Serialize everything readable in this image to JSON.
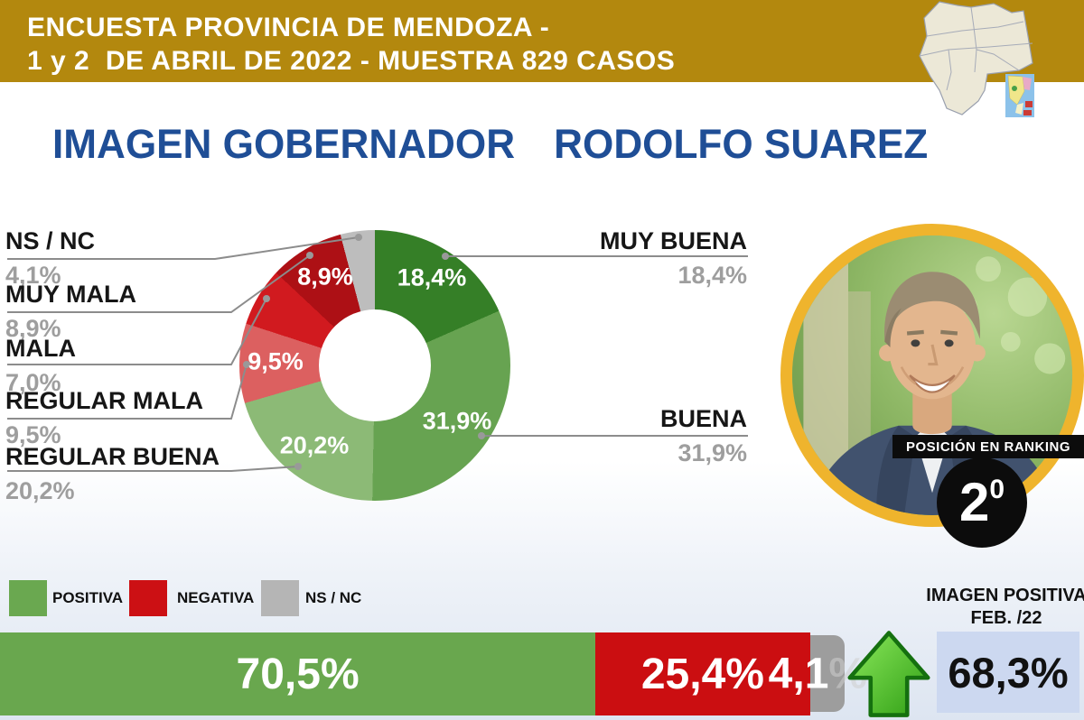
{
  "banner": {
    "line1": "ENCUESTA PROVINCIA DE MENDOZA -",
    "line2": "1 y 2  DE ABRIL DE 2022 - MUESTRA 829 CASOS",
    "bg_color": "#b3880e"
  },
  "title": {
    "left": "IMAGEN GOBERNADOR",
    "right": "RODOLFO SUAREZ",
    "color": "#1f4e96"
  },
  "chart_data": [
    {
      "type": "pie",
      "subtype": "donut",
      "title": "IMAGEN GOBERNADOR RODOLFO SUAREZ",
      "categories": [
        "MUY BUENA",
        "BUENA",
        "REGULAR BUENA",
        "REGULAR MALA",
        "MALA",
        "MUY MALA",
        "NS / NC"
      ],
      "values": [
        18.4,
        31.9,
        20.2,
        9.5,
        7.0,
        8.9,
        4.1
      ],
      "value_labels": [
        "18,4%",
        "31,9%",
        "20,2%",
        "9,5%",
        "7,0%",
        "8,9%",
        "4,1%"
      ],
      "colors": [
        "#357f27",
        "#67a351",
        "#8cba76",
        "#dc6060",
        "#d11a1f",
        "#ad1015",
        "#bdbdbd"
      ],
      "start_angle_deg": 0,
      "direction": "clockwise",
      "donut_hole_ratio": 0.41,
      "legend_position": "left-right callouts"
    },
    {
      "type": "bar",
      "subtype": "stacked-horizontal-100",
      "categories": [
        "POSITIVA",
        "NEGATIVA",
        "NS / NC"
      ],
      "values": [
        70.5,
        25.4,
        4.1
      ],
      "value_labels": [
        "70,5%",
        "25,4%",
        "4,1%"
      ],
      "colors": [
        "#69a74e",
        "#cb0e11",
        "#9d9d9d"
      ],
      "comparison": {
        "label": "IMAGEN POSITIVA FEB. /22",
        "value": 68.3,
        "value_label": "68,3%",
        "trend": "up"
      }
    }
  ],
  "donut_labels": {
    "left": [
      {
        "name": "NS / NC",
        "pct": "4,1%"
      },
      {
        "name": "MUY MALA",
        "pct": "8,9%"
      },
      {
        "name": "MALA",
        "pct": "7,0%"
      },
      {
        "name": "REGULAR MALA",
        "pct": "9,5%"
      },
      {
        "name": "REGULAR BUENA",
        "pct": "20,2%"
      }
    ],
    "right": [
      {
        "name": "MUY BUENA",
        "pct": "18,4%"
      },
      {
        "name": "BUENA",
        "pct": "31,9%"
      }
    ],
    "inside": [
      "18,4%",
      "31,9%",
      "20,2%",
      "9,5%",
      "8,9%"
    ]
  },
  "legend": [
    {
      "label": "POSITIVA",
      "color": "#6aa850"
    },
    {
      "label": "NEGATIVA",
      "color": "#cc1014"
    },
    {
      "label": "NS / NC",
      "color": "#b5b5b5"
    }
  ],
  "ranking": {
    "label": "POSICIÓN EN RANKING",
    "number": "2",
    "ordinal": "0"
  },
  "bottom_bar": {
    "positive_label": "70,5%",
    "negative_label": "25,4%",
    "ns_main": "4,1",
    "ns_pct": "%"
  },
  "comparison": {
    "line1": "IMAGEN POSITIVA",
    "line2": "FEB. /22",
    "value": "68,3%"
  }
}
